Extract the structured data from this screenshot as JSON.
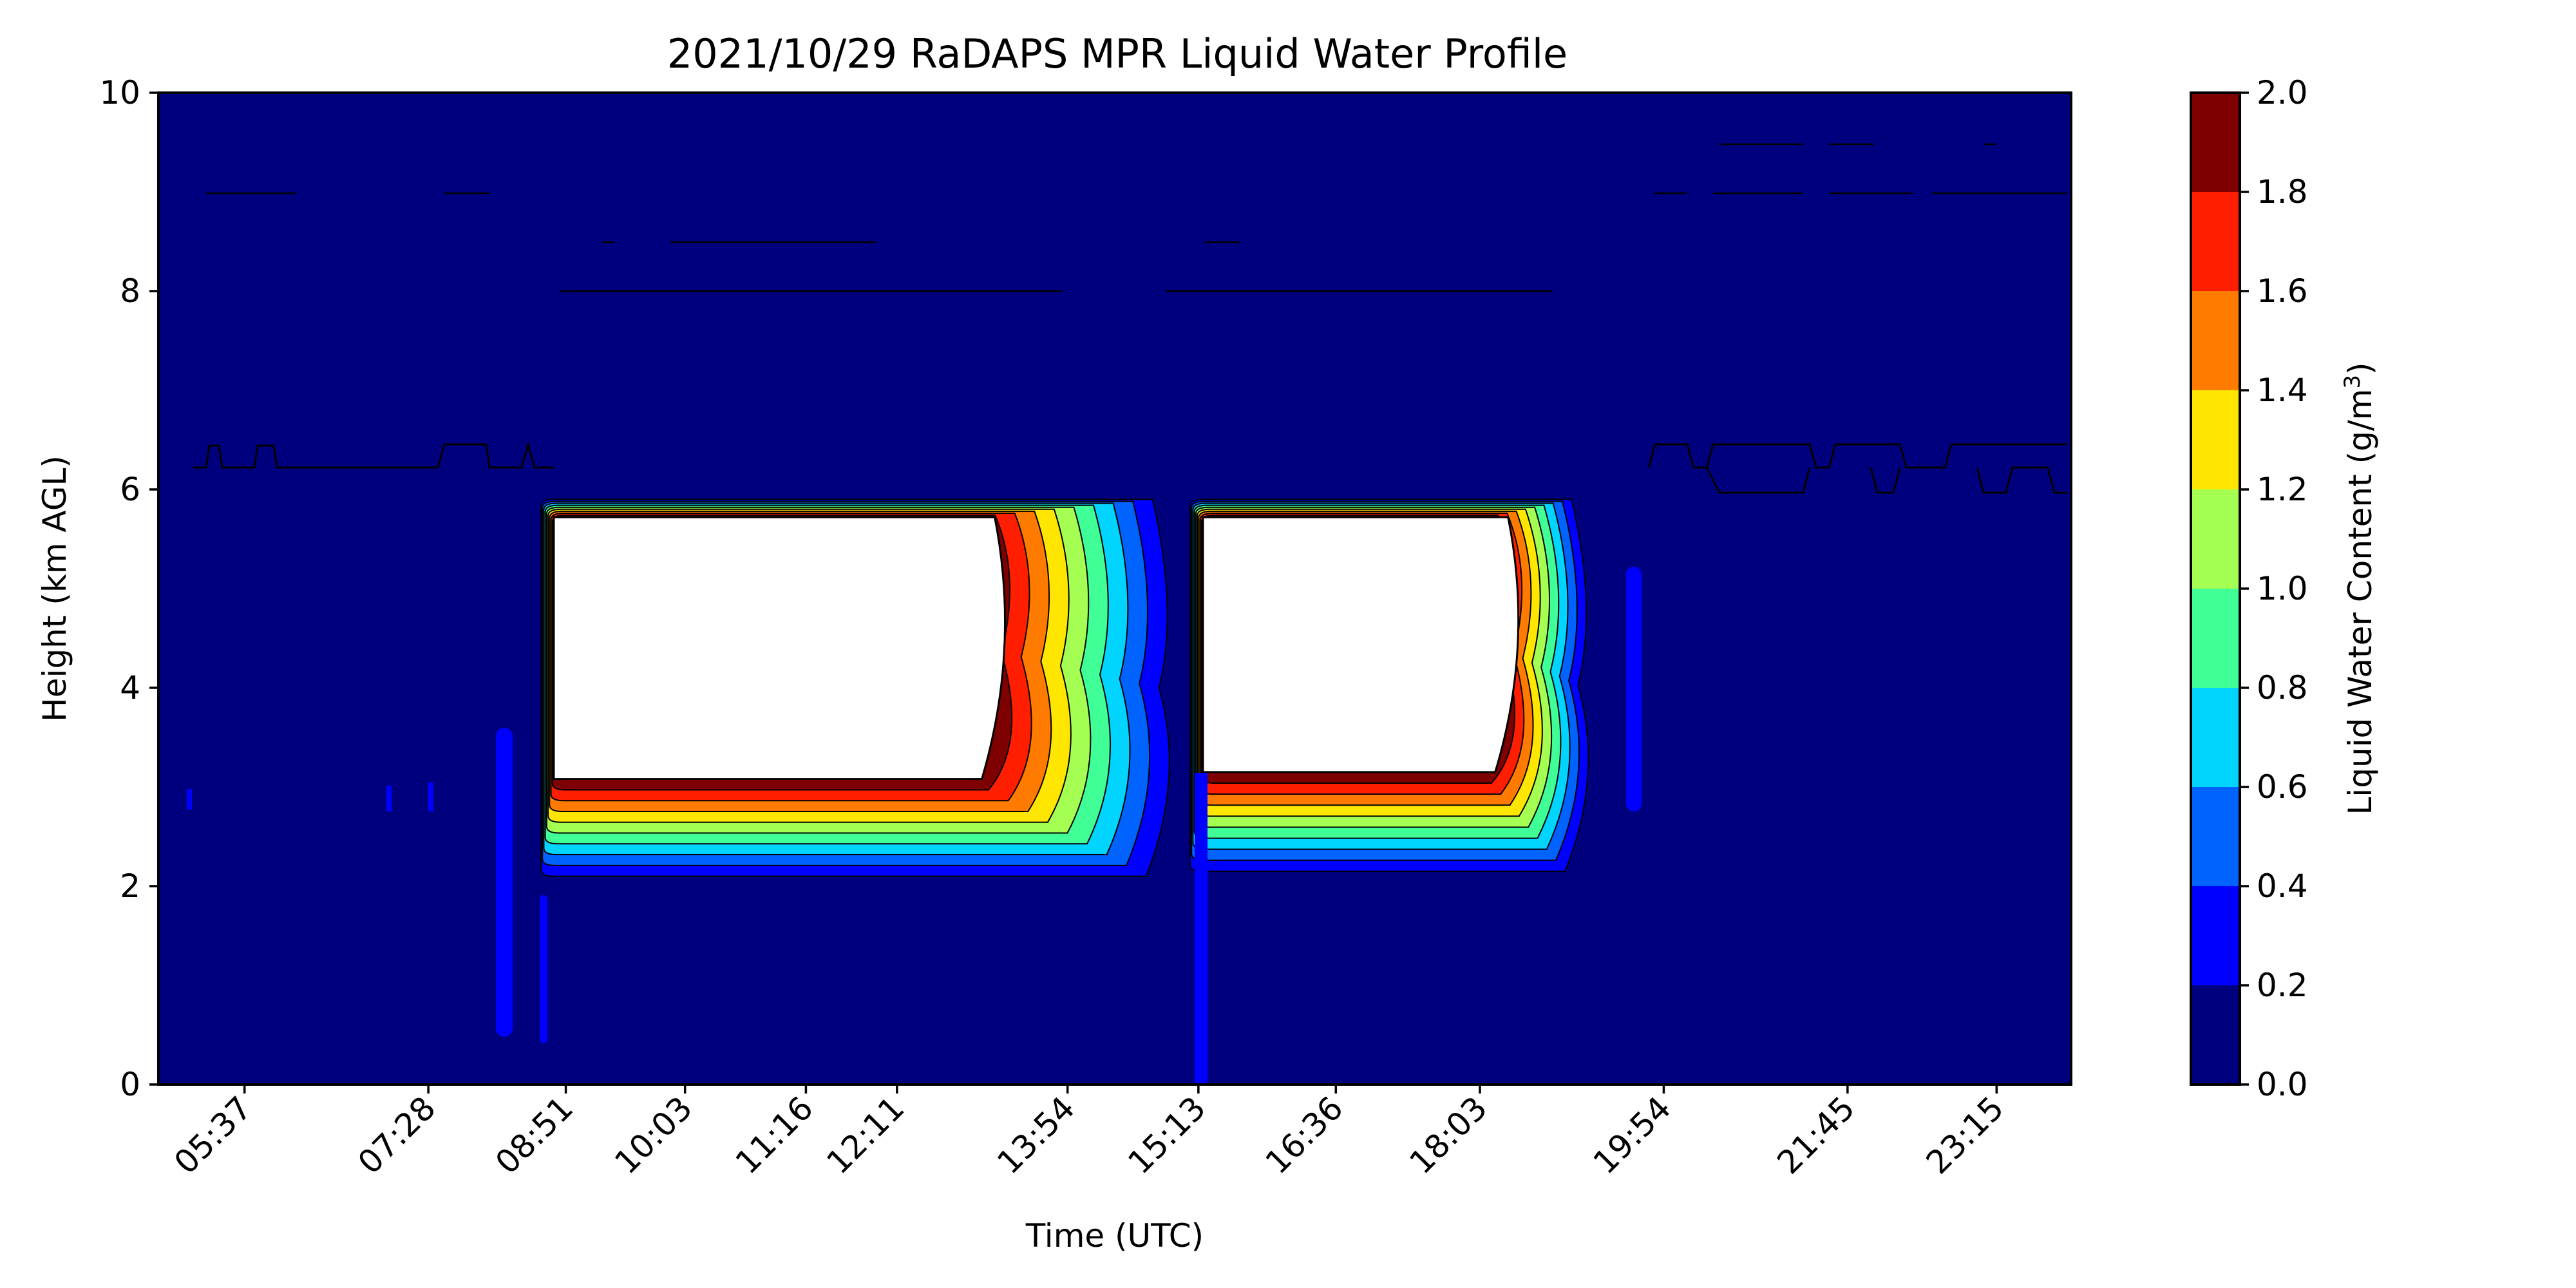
{
  "chart_data": {
    "type": "heatmap",
    "subtype": "filled-contour",
    "title": "2021/10/29 RaDAPS MPR Liquid Water Profile",
    "xlabel": "Time (UTC)",
    "ylabel": "Height (km AGL)",
    "colorbar_label": "Liquid Water Content (g/m",
    "colorbar_label_sup": "3",
    "colorbar_label_end": ")",
    "ylim": [
      0,
      10
    ],
    "y_ticks": [
      "0",
      "2",
      "4",
      "6",
      "8",
      "10"
    ],
    "x_time_range": [
      "04:45",
      "24:00"
    ],
    "x_ticks": [
      {
        "label": "05:37",
        "time": "05:37"
      },
      {
        "label": "07:28",
        "time": "07:28"
      },
      {
        "label": "08:51",
        "time": "08:51"
      },
      {
        "label": "10:03",
        "time": "10:03"
      },
      {
        "label": "11:16",
        "time": "11:16"
      },
      {
        "label": "12:11",
        "time": "12:11"
      },
      {
        "label": "13:54",
        "time": "13:54"
      },
      {
        "label": "15:13",
        "time": "15:13"
      },
      {
        "label": "16:36",
        "time": "16:36"
      },
      {
        "label": "18:03",
        "time": "18:03"
      },
      {
        "label": "19:54",
        "time": "19:54"
      },
      {
        "label": "21:45",
        "time": "21:45"
      },
      {
        "label": "23:15",
        "time": "23:15"
      }
    ],
    "levels": [
      0.0,
      0.2,
      0.4,
      0.6,
      0.8,
      1.0,
      1.2,
      1.4,
      1.6,
      1.8,
      2.0
    ],
    "level_labels": [
      "0.0",
      "0.2",
      "0.4",
      "0.6",
      "0.8",
      "1.0",
      "1.2",
      "1.4",
      "1.6",
      "1.8",
      "2.0"
    ],
    "colors": [
      "#00007f",
      "#0000fe",
      "#0063fe",
      "#00d4ff",
      "#40ff96",
      "#a4ff52",
      "#ffe600",
      "#ff7b00",
      "#ff1e00",
      "#7f0000"
    ],
    "above_max_color": "#ffffff",
    "cloud_layers": [
      {
        "time_start": "08:36",
        "time_end": "14:57",
        "core_top_km": 5.72,
        "core_bottom_km": 3.08,
        "outer_top_km": 5.9,
        "outer_bottom_km": 2.1,
        "core_end": "13:10"
      },
      {
        "time_start": "15:08",
        "time_end": "19:10",
        "core_top_km": 5.72,
        "core_bottom_km": 3.15,
        "outer_top_km": 5.9,
        "outer_bottom_km": 2.15,
        "core_end": "18:20"
      }
    ],
    "description_values": {
      "background_lwc": "0.0-0.2",
      "max_lwc_in_clouds": ">2.0"
    }
  }
}
